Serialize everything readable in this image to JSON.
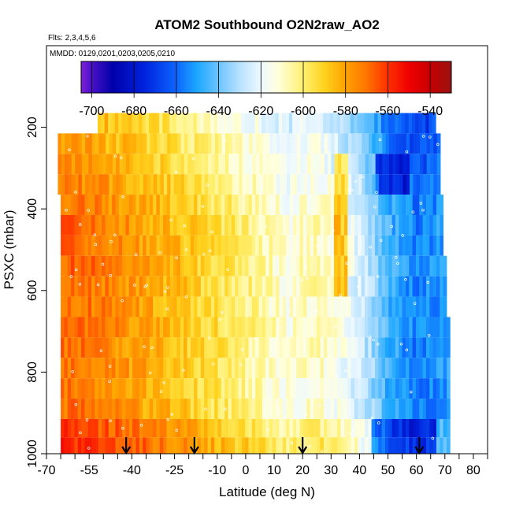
{
  "chart_data": {
    "type": "heatmap",
    "title": "ATOM2 Southbound O2N2raw_AO2",
    "flights_label": "Flts: 2,3,4,5,6",
    "dates_label": "MMDD: 0129,0201,0203,0205,0210",
    "xlabel": "Latitude (deg N)",
    "ylabel": "PSXC (mbar)",
    "xlim": [
      -70,
      85
    ],
    "ylim": [
      1000,
      0
    ],
    "x_ticks": [
      -70,
      -55,
      -40,
      -25,
      -10,
      0,
      10,
      20,
      30,
      40,
      50,
      60,
      70,
      80
    ],
    "x_tick_labels": [
      "-70",
      "-55",
      "-40",
      "-25",
      "-10",
      "0",
      "10",
      "20",
      "30",
      "40",
      "50",
      "60",
      "70",
      "80"
    ],
    "y_ticks": [
      200,
      400,
      600,
      800,
      1000
    ],
    "y_tick_labels": [
      "200",
      "400",
      "600",
      "800",
      "1000"
    ],
    "colorbar": {
      "range": [
        -705,
        -530
      ],
      "ticks": [
        -700,
        -680,
        -660,
        -640,
        -620,
        -600,
        -580,
        -560,
        -540
      ],
      "tick_labels": [
        "-700",
        "-680",
        "-660",
        "-640",
        "-620",
        "-600",
        "-580",
        "-560",
        "-540"
      ],
      "gradient": [
        {
          "v": -705,
          "c": "#7e22d6"
        },
        {
          "v": -700,
          "c": "#4a10c8"
        },
        {
          "v": -690,
          "c": "#0000aa"
        },
        {
          "v": -675,
          "c": "#0022dd"
        },
        {
          "v": -660,
          "c": "#0c66ff"
        },
        {
          "v": -650,
          "c": "#1ea8ff"
        },
        {
          "v": -640,
          "c": "#6cc4ff"
        },
        {
          "v": -630,
          "c": "#b8e2ff"
        },
        {
          "v": -620,
          "c": "#eef9ff"
        },
        {
          "v": -612,
          "c": "#ffffdd"
        },
        {
          "v": -600,
          "c": "#fff070"
        },
        {
          "v": -590,
          "c": "#ffd21e"
        },
        {
          "v": -580,
          "c": "#ffa200"
        },
        {
          "v": -570,
          "c": "#ff7400"
        },
        {
          "v": -560,
          "c": "#ff3000"
        },
        {
          "v": -550,
          "c": "#f00000"
        },
        {
          "v": -540,
          "c": "#c80000"
        },
        {
          "v": -530,
          "c": "#9a1212"
        }
      ]
    },
    "arrows_latitude": [
      -42,
      -18,
      20,
      61
    ],
    "profile_knots": [
      {
        "lat": -65,
        "v": -573
      },
      {
        "lat": -55,
        "v": -575
      },
      {
        "lat": -45,
        "v": -580
      },
      {
        "lat": -35,
        "v": -585
      },
      {
        "lat": -25,
        "v": -590
      },
      {
        "lat": -15,
        "v": -597
      },
      {
        "lat": -5,
        "v": -603
      },
      {
        "lat": 5,
        "v": -610
      },
      {
        "lat": 15,
        "v": -618
      },
      {
        "lat": 25,
        "v": -612
      },
      {
        "lat": 35,
        "v": -622
      },
      {
        "lat": 42,
        "v": -632
      },
      {
        "lat": 50,
        "v": -650
      },
      {
        "lat": 60,
        "v": -662
      },
      {
        "lat": 70,
        "v": -655
      }
    ],
    "layers": [
      {
        "p_top": 165,
        "p_bot": 215,
        "lat_min": -52,
        "lat_max": 66,
        "shift": -8
      },
      {
        "p_top": 215,
        "p_bot": 265,
        "lat_min": -66,
        "lat_max": 68,
        "shift": -5
      },
      {
        "p_top": 265,
        "p_bot": 315,
        "lat_min": -66,
        "lat_max": 68,
        "shift": -3
      },
      {
        "p_top": 315,
        "p_bot": 365,
        "lat_min": -66,
        "lat_max": 68,
        "shift": 0
      },
      {
        "p_top": 365,
        "p_bot": 415,
        "lat_min": -65,
        "lat_max": 69,
        "shift": 3
      },
      {
        "p_top": 415,
        "p_bot": 465,
        "lat_min": -65,
        "lat_max": 69,
        "shift": 5
      },
      {
        "p_top": 465,
        "p_bot": 515,
        "lat_min": -65,
        "lat_max": 69,
        "shift": 5
      },
      {
        "p_top": 515,
        "p_bot": 565,
        "lat_min": -65,
        "lat_max": 70,
        "shift": 6
      },
      {
        "p_top": 565,
        "p_bot": 615,
        "lat_min": -65,
        "lat_max": 70,
        "shift": 5
      },
      {
        "p_top": 615,
        "p_bot": 665,
        "lat_min": -65,
        "lat_max": 70,
        "shift": 4
      },
      {
        "p_top": 665,
        "p_bot": 715,
        "lat_min": -65,
        "lat_max": 71,
        "shift": 6
      },
      {
        "p_top": 715,
        "p_bot": 765,
        "lat_min": -65,
        "lat_max": 71,
        "shift": 4
      },
      {
        "p_top": 765,
        "p_bot": 815,
        "lat_min": -65,
        "lat_max": 71,
        "shift": 4
      },
      {
        "p_top": 815,
        "p_bot": 865,
        "lat_min": -65,
        "lat_max": 71,
        "shift": 3
      },
      {
        "p_top": 865,
        "p_bot": 915,
        "lat_min": -65,
        "lat_max": 71,
        "shift": 4
      },
      {
        "p_top": 915,
        "p_bot": 960,
        "lat_min": -65,
        "lat_max": 71,
        "shift": 12
      },
      {
        "p_top": 960,
        "p_bot": 1000,
        "lat_min": -65,
        "lat_max": 71,
        "shift": 16
      }
    ]
  }
}
